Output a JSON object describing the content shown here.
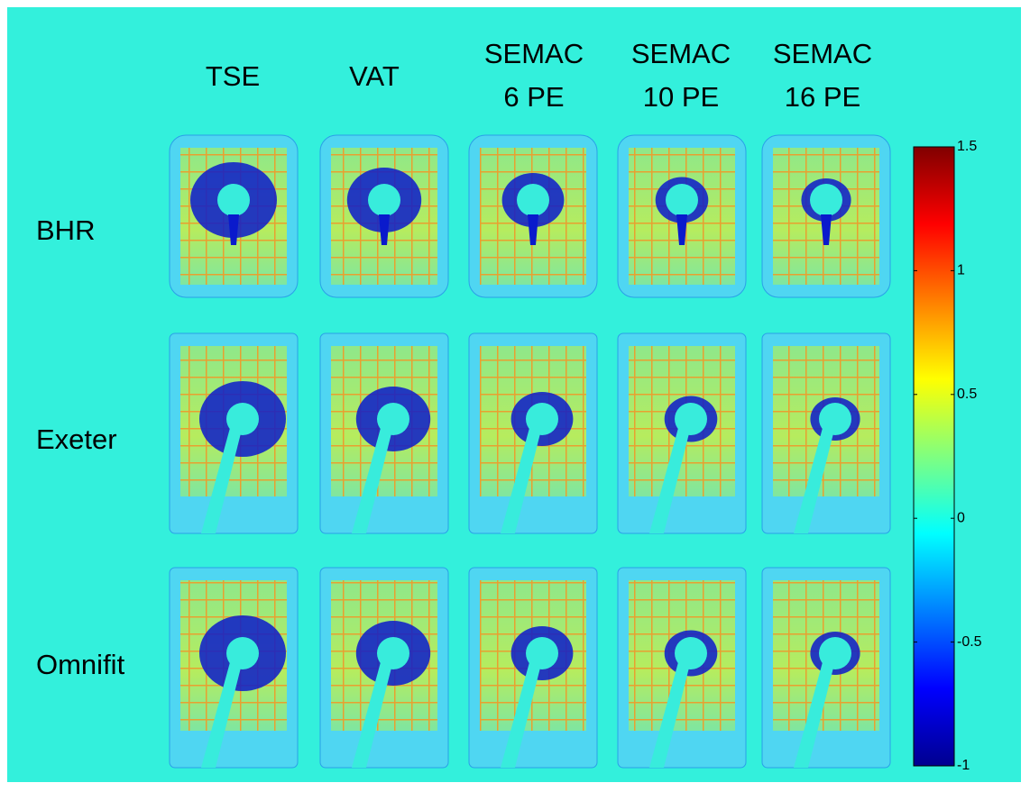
{
  "columns": [
    [
      "TSE"
    ],
    [
      "VAT"
    ],
    [
      "SEMAC",
      "6 PE"
    ],
    [
      "SEMAC",
      "10 PE"
    ],
    [
      "SEMAC",
      "16 PE"
    ]
  ],
  "rows": [
    "BHR",
    "Exeter",
    "Omnifit"
  ],
  "colorbar": {
    "limits": [
      -1,
      1.5
    ],
    "ticks": [
      1.5,
      1,
      0.5,
      0,
      -0.5,
      -1
    ]
  }
}
